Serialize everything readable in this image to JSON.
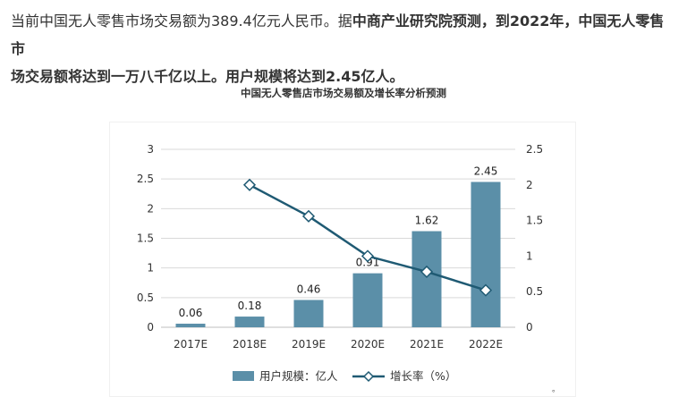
{
  "article": {
    "line1_normal": "当前中国无人零售市场交易额为389.4亿元人民币。据",
    "line1_bold": "中商产业研究院预测，到2022年，中国无人零售市",
    "line2_bold": "场交易额将达到一万八千亿以上。用户规模将达到2.45亿人。"
  },
  "chart_data": {
    "type": "bar",
    "title": "中国无人零售店市场交易额及增长率分析预测",
    "categories": [
      "2017E",
      "2018E",
      "2019E",
      "2020E",
      "2021E",
      "2022E"
    ],
    "series": [
      {
        "name": "用户规模：亿人",
        "type": "bar",
        "axis": "left",
        "values": [
          0.06,
          0.18,
          0.46,
          0.91,
          1.62,
          2.45
        ],
        "data_labels": [
          "0.06",
          "0.18",
          "0.46",
          "0.91",
          "1.62",
          "2.45"
        ],
        "color": "#5b8fa8"
      },
      {
        "name": "增长率（%）",
        "type": "line",
        "axis": "right",
        "values": [
          null,
          2.0,
          1.56,
          1.0,
          0.78,
          0.52
        ],
        "color": "#1f5a73"
      }
    ],
    "left_axis": {
      "range": [
        0,
        3
      ],
      "ticks": [
        "0",
        "0.5",
        "1",
        "1.5",
        "2",
        "2.5",
        "3"
      ]
    },
    "right_axis": {
      "range": [
        0,
        2.5
      ],
      "ticks": [
        "0",
        "0.5",
        "1",
        "1.5",
        "2",
        "2.5"
      ]
    },
    "grid": true,
    "legend_position": "bottom"
  },
  "stray_mark": "。"
}
